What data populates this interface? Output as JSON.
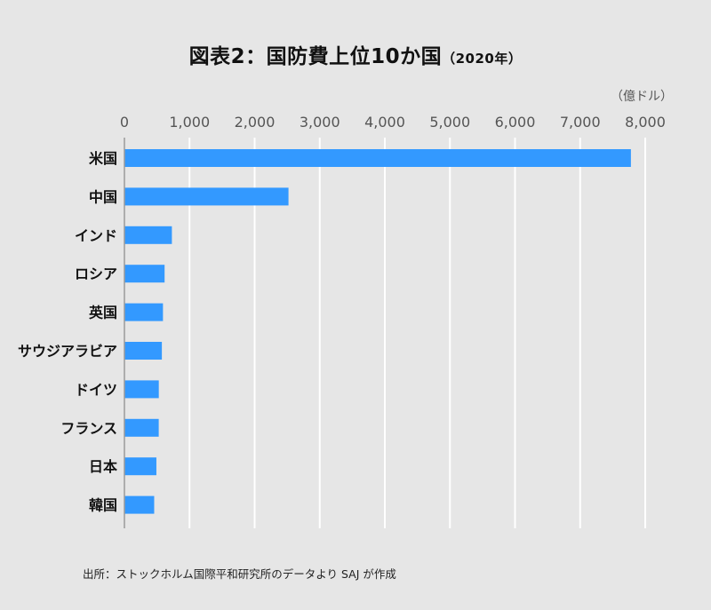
{
  "chart_data": {
    "type": "bar",
    "orientation": "horizontal",
    "title": "図表2：国防費上位10か国",
    "subtitle": "（2020年）",
    "unit_label": "（億ドル）",
    "categories": [
      "米国",
      "中国",
      "インド",
      "ロシア",
      "英国",
      "サウジアラビア",
      "ドイツ",
      "フランス",
      "日本",
      "韓国"
    ],
    "values": [
      7780,
      2520,
      729,
      617,
      592,
      575,
      528,
      527,
      491,
      457
    ],
    "xlim": [
      0,
      8000
    ],
    "ticks": [
      0,
      1000,
      2000,
      3000,
      4000,
      5000,
      6000,
      7000,
      8000
    ],
    "tick_labels": [
      "0",
      "1,000",
      "2,000",
      "3,000",
      "4,000",
      "5,000",
      "6,000",
      "7,000",
      "8,000"
    ],
    "grid": true,
    "axis_position": "top"
  },
  "colors": {
    "bar": "#3399ff",
    "background": "#e6e6e6",
    "grid": "#ffffff",
    "axis": "#9a9a9a",
    "tick_text": "#555555"
  },
  "source": "出所：ストックホルム国際平和研究所のデータより SAJ が作成"
}
